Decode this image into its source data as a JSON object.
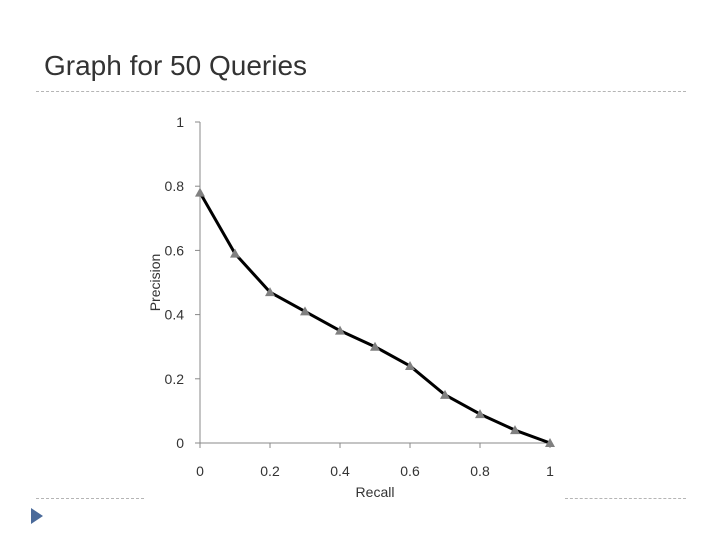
{
  "slide": {
    "title": "Graph for 50 Queries",
    "bullet_icon": "triangle-right-icon",
    "bullet_color": "#4a6a9a",
    "rule_color": "#b5b5b5"
  },
  "chart_data": {
    "type": "line",
    "title": "",
    "xlabel": "Recall",
    "ylabel": "Precision",
    "xlim": [
      0,
      1
    ],
    "ylim": [
      0,
      1
    ],
    "x_ticks": [
      "0",
      "0.2",
      "0.4",
      "0.6",
      "0.8",
      "1"
    ],
    "y_ticks": [
      "0",
      "0.2",
      "0.4",
      "0.6",
      "0.8",
      "1"
    ],
    "grid": false,
    "legend": "none",
    "line_color": "#000000",
    "marker": "triangle",
    "marker_color": "#808080",
    "series": [
      {
        "x": [
          0,
          0.1,
          0.2,
          0.3,
          0.4,
          0.5,
          0.6,
          0.7,
          0.8,
          0.9,
          1.0
        ],
        "y": [
          0.78,
          0.59,
          0.47,
          0.41,
          0.35,
          0.3,
          0.24,
          0.15,
          0.09,
          0.04,
          0.0
        ]
      }
    ]
  }
}
